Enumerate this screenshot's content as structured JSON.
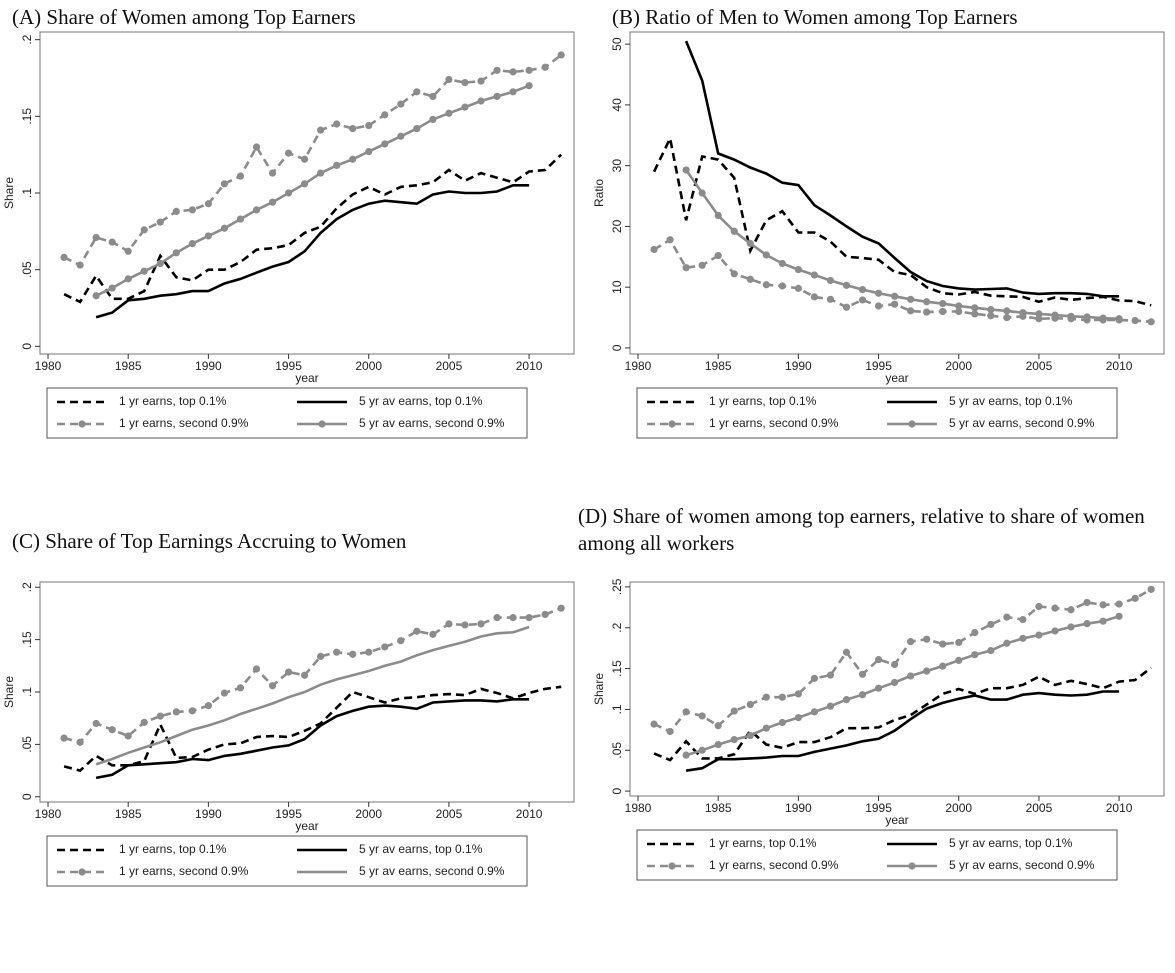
{
  "chart_data": [
    {
      "type": "line",
      "title": "(A) Share of Women among Top Earners",
      "ylabel": "Share",
      "xlabel": "year",
      "x": [
        1981,
        1982,
        1983,
        1984,
        1985,
        1986,
        1987,
        1988,
        1989,
        1990,
        1991,
        1992,
        1993,
        1994,
        1995,
        1996,
        1997,
        1998,
        1999,
        2000,
        2001,
        2002,
        2003,
        2004,
        2005,
        2006,
        2007,
        2008,
        2009,
        2010,
        2011,
        2012
      ],
      "xlim": [
        1979.5,
        2012.8
      ],
      "xticks": [
        1980,
        1985,
        1990,
        1995,
        2000,
        2005,
        2010
      ],
      "ylim": [
        -0.005,
        0.205
      ],
      "yticks": [
        0,
        {
          "value": 0.05,
          "label": ".05"
        },
        {
          "value": 0.1,
          "label": ".1"
        },
        {
          "value": 0.15,
          "label": ".15"
        },
        {
          "value": 0.2,
          "label": ".2"
        }
      ],
      "series": [
        {
          "name": "1 yr earns, top 0.1%",
          "color": "#000000",
          "dashed": true,
          "markers": false,
          "values": [
            0.034,
            0.029,
            0.046,
            0.031,
            0.031,
            0.036,
            0.059,
            0.045,
            0.043,
            0.05,
            0.05,
            0.055,
            0.063,
            0.064,
            0.066,
            0.074,
            0.078,
            0.09,
            0.099,
            0.104,
            0.099,
            0.104,
            0.105,
            0.107,
            0.115,
            0.108,
            0.113,
            0.11,
            0.107,
            0.114,
            0.115,
            0.125
          ]
        },
        {
          "name": "5 yr av earns, top 0.1%",
          "color": "#000000",
          "dashed": false,
          "markers": false,
          "values": [
            null,
            null,
            0.019,
            0.022,
            0.03,
            0.031,
            0.033,
            0.034,
            0.036,
            0.036,
            0.041,
            0.044,
            0.048,
            0.052,
            0.055,
            0.062,
            0.074,
            0.083,
            0.089,
            0.093,
            0.095,
            0.094,
            0.093,
            0.099,
            0.101,
            0.1,
            0.1,
            0.101,
            0.105,
            0.105,
            null,
            null
          ]
        },
        {
          "name": "1 yr earns, second 0.9%",
          "color": "#8c8c8c",
          "dashed": true,
          "markers": true,
          "values": [
            0.058,
            0.053,
            0.071,
            0.068,
            0.062,
            0.076,
            0.081,
            0.088,
            0.089,
            0.093,
            0.106,
            0.111,
            0.13,
            0.113,
            0.126,
            0.122,
            0.141,
            0.145,
            0.142,
            0.144,
            0.151,
            0.158,
            0.166,
            0.163,
            0.174,
            0.172,
            0.173,
            0.18,
            0.179,
            0.18,
            0.182,
            0.19
          ]
        },
        {
          "name": "5 yr av earns, second 0.9%",
          "color": "#8c8c8c",
          "dashed": false,
          "markers": true,
          "values": [
            null,
            null,
            0.033,
            0.038,
            0.044,
            0.049,
            0.054,
            0.061,
            0.067,
            0.072,
            0.077,
            0.083,
            0.089,
            0.094,
            0.1,
            0.106,
            0.113,
            0.118,
            0.122,
            0.127,
            0.132,
            0.137,
            0.142,
            0.148,
            0.152,
            0.156,
            0.16,
            0.163,
            0.166,
            0.17,
            null,
            null
          ]
        }
      ]
    },
    {
      "type": "line",
      "title": "(B) Ratio of Men to Women among Top Earners",
      "ylabel": "Ratio",
      "xlabel": "year",
      "x": [
        1981,
        1982,
        1983,
        1984,
        1985,
        1986,
        1987,
        1988,
        1989,
        1990,
        1991,
        1992,
        1993,
        1994,
        1995,
        1996,
        1997,
        1998,
        1999,
        2000,
        2001,
        2002,
        2003,
        2004,
        2005,
        2006,
        2007,
        2008,
        2009,
        2010,
        2011,
        2012
      ],
      "xlim": [
        1979.5,
        2012.8
      ],
      "xticks": [
        1980,
        1985,
        1990,
        1995,
        2000,
        2005,
        2010
      ],
      "ylim": [
        -1,
        52
      ],
      "yticks": [
        0,
        10,
        20,
        30,
        40,
        50
      ],
      "series": [
        {
          "name": "1 yr earns, top 0.1%",
          "color": "#000000",
          "dashed": true,
          "markers": false,
          "values": [
            29,
            34.5,
            21,
            31.5,
            31,
            28,
            16,
            21,
            22.5,
            19,
            19,
            17.5,
            15,
            14.8,
            14.5,
            12.5,
            12,
            10,
            9,
            8.8,
            9.2,
            8.6,
            8.5,
            8.4,
            7.6,
            8.3,
            7.9,
            8.2,
            8.4,
            7.8,
            7.7,
            7.0
          ]
        },
        {
          "name": "5 yr av earns, top 0.1%",
          "color": "#000000",
          "dashed": false,
          "markers": false,
          "values": [
            null,
            null,
            50.5,
            44,
            32,
            31,
            29.7,
            28.7,
            27.2,
            26.8,
            23.5,
            21.8,
            20,
            18.3,
            17.2,
            14.8,
            12.5,
            11,
            10.2,
            9.8,
            9.6,
            9.7,
            9.8,
            9.1,
            8.9,
            9.0,
            9.0,
            8.9,
            8.5,
            8.5,
            null,
            null
          ]
        },
        {
          "name": "1 yr earns, second 0.9%",
          "color": "#8c8c8c",
          "dashed": true,
          "markers": true,
          "values": [
            16.2,
            17.8,
            13.2,
            13.6,
            15.2,
            12.2,
            11.3,
            10.4,
            10.2,
            9.8,
            8.4,
            8,
            6.7,
            7.9,
            6.9,
            7.2,
            6.1,
            5.9,
            6.0,
            6.0,
            5.6,
            5.3,
            5.0,
            5.2,
            4.8,
            4.9,
            4.8,
            4.6,
            4.6,
            4.6,
            4.5,
            4.3
          ]
        },
        {
          "name": "5 yr av earns, second 0.9%",
          "color": "#8c8c8c",
          "dashed": false,
          "markers": true,
          "values": [
            null,
            null,
            29.3,
            25.5,
            21.8,
            19.2,
            17.2,
            15.3,
            13.9,
            12.9,
            12.0,
            11.1,
            10.3,
            9.6,
            9.0,
            8.5,
            8.0,
            7.6,
            7.3,
            6.9,
            6.6,
            6.3,
            6.1,
            5.8,
            5.6,
            5.4,
            5.2,
            5.1,
            4.9,
            4.8,
            null,
            null
          ]
        }
      ]
    },
    {
      "type": "line",
      "title": "(C) Share of Top Earnings Accruing to Women",
      "ylabel": "Share",
      "xlabel": "year",
      "x": [
        1981,
        1982,
        1983,
        1984,
        1985,
        1986,
        1987,
        1988,
        1989,
        1990,
        1991,
        1992,
        1993,
        1994,
        1995,
        1996,
        1997,
        1998,
        1999,
        2000,
        2001,
        2002,
        2003,
        2004,
        2005,
        2006,
        2007,
        2008,
        2009,
        2010,
        2011,
        2012
      ],
      "xlim": [
        1979.5,
        2012.8
      ],
      "xticks": [
        1980,
        1985,
        1990,
        1995,
        2000,
        2005,
        2010
      ],
      "ylim": [
        -0.005,
        0.205
      ],
      "yticks": [
        0,
        {
          "value": 0.05,
          "label": ".05"
        },
        {
          "value": 0.1,
          "label": ".1"
        },
        {
          "value": 0.15,
          "label": ".15"
        },
        {
          "value": 0.2,
          "label": ".2"
        }
      ],
      "series": [
        {
          "name": "1 yr earns, top 0.1%",
          "color": "#000000",
          "dashed": true,
          "markers": false,
          "values": [
            0.029,
            0.025,
            0.039,
            0.03,
            0.03,
            0.034,
            0.069,
            0.037,
            0.038,
            0.045,
            0.05,
            0.051,
            0.057,
            0.058,
            0.057,
            0.063,
            0.07,
            0.085,
            0.1,
            0.095,
            0.09,
            0.094,
            0.095,
            0.097,
            0.098,
            0.097,
            0.103,
            0.099,
            0.094,
            0.099,
            0.103,
            0.105
          ]
        },
        {
          "name": "5 yr av earns, top 0.1%",
          "color": "#000000",
          "dashed": false,
          "markers": false,
          "values": [
            null,
            null,
            0.018,
            0.021,
            0.03,
            0.031,
            0.032,
            0.033,
            0.036,
            0.035,
            0.039,
            0.041,
            0.044,
            0.047,
            0.049,
            0.055,
            0.068,
            0.077,
            0.082,
            0.086,
            0.087,
            0.086,
            0.084,
            0.09,
            0.091,
            0.092,
            0.092,
            0.091,
            0.093,
            0.093,
            null,
            null
          ]
        },
        {
          "name": "1 yr earns, second 0.9%",
          "color": "#8c8c8c",
          "dashed": true,
          "markers": true,
          "values": [
            0.056,
            0.052,
            0.07,
            0.064,
            0.058,
            0.071,
            0.077,
            0.081,
            0.082,
            0.087,
            0.099,
            0.104,
            0.122,
            0.106,
            0.119,
            0.116,
            0.134,
            0.138,
            0.136,
            0.138,
            0.143,
            0.149,
            0.158,
            0.155,
            0.165,
            0.164,
            0.165,
            0.171,
            0.171,
            0.171,
            0.174,
            0.18
          ]
        },
        {
          "name": "5 yr av earns, second 0.9%",
          "color": "#8c8c8c",
          "dashed": false,
          "markers": false,
          "values": [
            null,
            null,
            0.031,
            0.036,
            0.042,
            0.047,
            0.052,
            0.058,
            0.064,
            0.068,
            0.073,
            0.079,
            0.084,
            0.089,
            0.095,
            0.1,
            0.107,
            0.112,
            0.116,
            0.12,
            0.125,
            0.129,
            0.135,
            0.14,
            0.144,
            0.148,
            0.153,
            0.156,
            0.157,
            0.162,
            null,
            null
          ]
        }
      ]
    },
    {
      "type": "line",
      "title": "(D) Share of women among top earners, relative to share of women among all workers",
      "ylabel": "Share",
      "xlabel": "year",
      "x": [
        1981,
        1982,
        1983,
        1984,
        1985,
        1986,
        1987,
        1988,
        1989,
        1990,
        1991,
        1992,
        1993,
        1994,
        1995,
        1996,
        1997,
        1998,
        1999,
        2000,
        2001,
        2002,
        2003,
        2004,
        2005,
        2006,
        2007,
        2008,
        2009,
        2010,
        2011,
        2012
      ],
      "xlim": [
        1979.5,
        2012.8
      ],
      "xticks": [
        1980,
        1985,
        1990,
        1995,
        2000,
        2005,
        2010
      ],
      "ylim": [
        -0.006,
        0.256
      ],
      "yticks": [
        0,
        {
          "value": 0.05,
          "label": ".05"
        },
        {
          "value": 0.1,
          "label": ".1"
        },
        {
          "value": 0.15,
          "label": ".15"
        },
        {
          "value": 0.2,
          "label": ".2"
        },
        {
          "value": 0.25,
          "label": ".25"
        }
      ],
      "series": [
        {
          "name": "1 yr earns, top 0.1%",
          "color": "#000000",
          "dashed": true,
          "markers": false,
          "values": [
            0.046,
            0.038,
            0.061,
            0.04,
            0.04,
            0.045,
            0.074,
            0.057,
            0.053,
            0.06,
            0.06,
            0.066,
            0.077,
            0.077,
            0.078,
            0.087,
            0.093,
            0.106,
            0.119,
            0.125,
            0.119,
            0.126,
            0.126,
            0.13,
            0.14,
            0.13,
            0.135,
            0.131,
            0.126,
            0.134,
            0.136,
            0.151
          ]
        },
        {
          "name": "5 yr av earns, top 0.1%",
          "color": "#000000",
          "dashed": false,
          "markers": false,
          "values": [
            null,
            null,
            0.025,
            0.028,
            0.039,
            0.039,
            0.04,
            0.041,
            0.043,
            0.043,
            0.048,
            0.052,
            0.056,
            0.061,
            0.064,
            0.074,
            0.088,
            0.101,
            0.108,
            0.113,
            0.117,
            0.112,
            0.112,
            0.118,
            0.12,
            0.118,
            0.117,
            0.118,
            0.122,
            0.122,
            null,
            null
          ]
        },
        {
          "name": "1 yr earns, second 0.9%",
          "color": "#8c8c8c",
          "dashed": true,
          "markers": true,
          "values": [
            0.082,
            0.073,
            0.097,
            0.092,
            0.08,
            0.098,
            0.106,
            0.115,
            0.115,
            0.119,
            0.138,
            0.142,
            0.17,
            0.143,
            0.161,
            0.155,
            0.183,
            0.186,
            0.18,
            0.182,
            0.194,
            0.204,
            0.213,
            0.21,
            0.226,
            0.224,
            0.222,
            0.231,
            0.228,
            0.229,
            0.236,
            0.247
          ]
        },
        {
          "name": "5 yr av earns, second 0.9%",
          "color": "#8c8c8c",
          "dashed": false,
          "markers": true,
          "values": [
            null,
            null,
            0.044,
            0.05,
            0.057,
            0.063,
            0.068,
            0.077,
            0.084,
            0.09,
            0.097,
            0.104,
            0.112,
            0.118,
            0.126,
            0.133,
            0.141,
            0.147,
            0.153,
            0.16,
            0.167,
            0.172,
            0.181,
            0.187,
            0.191,
            0.196,
            0.201,
            0.205,
            0.208,
            0.214,
            null,
            null
          ]
        }
      ]
    }
  ]
}
